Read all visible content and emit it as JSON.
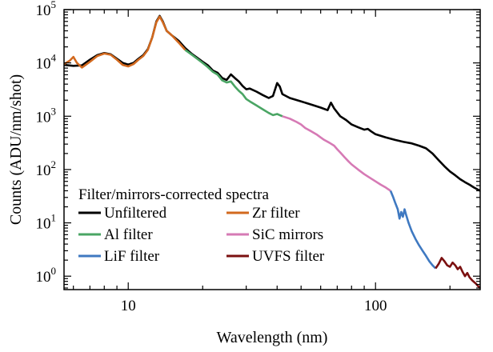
{
  "chart_data": {
    "type": "line",
    "xlabel": "Wavelength (nm)",
    "ylabel": "Counts (ADU/nm/shot)",
    "xscale": "log",
    "yscale": "log",
    "xlim": [
      5.5,
      265
    ],
    "ylim": [
      0.56,
      100000
    ],
    "x_ticks": [
      {
        "value": 10,
        "label": "10"
      },
      {
        "value": 100,
        "label": "100"
      }
    ],
    "y_ticks": [
      {
        "exp": 0,
        "base": "10",
        "sup": "0"
      },
      {
        "exp": 1,
        "base": "10",
        "sup": "1"
      },
      {
        "exp": 2,
        "base": "10",
        "sup": "2"
      },
      {
        "exp": 3,
        "base": "10",
        "sup": "3"
      },
      {
        "exp": 4,
        "base": "10",
        "sup": "4"
      },
      {
        "exp": 5,
        "base": "10",
        "sup": "5"
      }
    ],
    "legend": {
      "title": "Filter/mirrors-corrected spectra",
      "placement": "bottom-left"
    },
    "series": [
      {
        "name": "Unfiltered",
        "color": "#000000",
        "points": [
          [
            5.5,
            9200
          ],
          [
            6,
            8800
          ],
          [
            6.5,
            9000
          ],
          [
            7,
            11500
          ],
          [
            7.5,
            14000
          ],
          [
            8,
            15300
          ],
          [
            8.5,
            14500
          ],
          [
            9,
            12000
          ],
          [
            9.5,
            10000
          ],
          [
            10,
            9300
          ],
          [
            10.5,
            10000
          ],
          [
            11,
            12000
          ],
          [
            11.5,
            14000
          ],
          [
            12,
            18000
          ],
          [
            12.5,
            30000
          ],
          [
            13,
            60000
          ],
          [
            13.4,
            76000
          ],
          [
            13.8,
            60000
          ],
          [
            14.3,
            40000
          ],
          [
            15,
            33000
          ],
          [
            16,
            26000
          ],
          [
            17,
            19000
          ],
          [
            18,
            15000
          ],
          [
            19,
            12500
          ],
          [
            20,
            10500
          ],
          [
            21,
            9000
          ],
          [
            22,
            7200
          ],
          [
            23,
            6500
          ],
          [
            24,
            5200
          ],
          [
            25,
            4800
          ],
          [
            26,
            6100
          ],
          [
            27,
            5200
          ],
          [
            28,
            4500
          ],
          [
            29,
            3700
          ],
          [
            30,
            3200
          ],
          [
            31,
            3300
          ],
          [
            33,
            2900
          ],
          [
            35,
            2500
          ],
          [
            37,
            2200
          ],
          [
            38.5,
            2400
          ],
          [
            40,
            4200
          ],
          [
            41,
            3600
          ],
          [
            42,
            2600
          ],
          [
            45,
            2200
          ],
          [
            50,
            1900
          ],
          [
            55,
            1650
          ],
          [
            60,
            1450
          ],
          [
            64,
            1300
          ],
          [
            66,
            1800
          ],
          [
            68,
            1400
          ],
          [
            72,
            1000
          ],
          [
            76,
            850
          ],
          [
            80,
            700
          ],
          [
            85,
            620
          ],
          [
            90,
            560
          ],
          [
            93,
            580
          ],
          [
            96,
            520
          ],
          [
            100,
            460
          ],
          [
            110,
            400
          ],
          [
            120,
            360
          ],
          [
            130,
            330
          ],
          [
            140,
            310
          ],
          [
            150,
            280
          ],
          [
            160,
            250
          ],
          [
            170,
            200
          ],
          [
            180,
            150
          ],
          [
            190,
            115
          ],
          [
            200,
            92
          ],
          [
            210,
            78
          ],
          [
            220,
            66
          ],
          [
            230,
            58
          ],
          [
            240,
            52
          ],
          [
            250,
            46
          ],
          [
            265,
            40
          ]
        ]
      },
      {
        "name": "Zr filter",
        "color": "#d2691e",
        "points": [
          [
            5.5,
            9500
          ],
          [
            5.8,
            11000
          ],
          [
            6,
            13000
          ],
          [
            6.2,
            10000
          ],
          [
            6.5,
            8200
          ],
          [
            7,
            10500
          ],
          [
            7.5,
            13500
          ],
          [
            8,
            15000
          ],
          [
            8.5,
            14200
          ],
          [
            9,
            11500
          ],
          [
            9.5,
            9200
          ],
          [
            10,
            8600
          ],
          [
            10.5,
            9500
          ],
          [
            11,
            11500
          ],
          [
            11.5,
            13500
          ],
          [
            12,
            17500
          ],
          [
            12.5,
            30000
          ],
          [
            13,
            58000
          ],
          [
            13.4,
            74000
          ],
          [
            13.8,
            58000
          ],
          [
            14.3,
            40000
          ],
          [
            15,
            33000
          ],
          [
            16,
            24000
          ],
          [
            17,
            17500
          ]
        ]
      },
      {
        "name": "Al filter",
        "color": "#4aa564",
        "points": [
          [
            17,
            17500
          ],
          [
            18,
            14500
          ],
          [
            19,
            12000
          ],
          [
            20,
            10000
          ],
          [
            21,
            8300
          ],
          [
            22,
            6800
          ],
          [
            23,
            6000
          ],
          [
            24,
            4700
          ],
          [
            25,
            4300
          ],
          [
            26,
            4500
          ],
          [
            27,
            3600
          ],
          [
            28,
            3000
          ],
          [
            29,
            2600
          ],
          [
            30,
            2100
          ],
          [
            31,
            1900
          ],
          [
            33,
            1600
          ],
          [
            35,
            1350
          ],
          [
            37,
            1150
          ],
          [
            38.5,
            1050
          ],
          [
            40,
            1100
          ],
          [
            41,
            1050
          ],
          [
            42,
            1000
          ]
        ]
      },
      {
        "name": "SiC mirrors",
        "color": "#d67ab5",
        "points": [
          [
            42,
            1000
          ],
          [
            45,
            900
          ],
          [
            48,
            780
          ],
          [
            50,
            700
          ],
          [
            52,
            600
          ],
          [
            55,
            520
          ],
          [
            58,
            450
          ],
          [
            60,
            400
          ],
          [
            62,
            360
          ],
          [
            65,
            320
          ],
          [
            68,
            280
          ],
          [
            70,
            240
          ],
          [
            72,
            210
          ],
          [
            75,
            170
          ],
          [
            78,
            140
          ],
          [
            80,
            125
          ],
          [
            85,
            100
          ],
          [
            90,
            82
          ],
          [
            95,
            70
          ],
          [
            100,
            60
          ],
          [
            105,
            52
          ],
          [
            110,
            46
          ],
          [
            115,
            40
          ]
        ]
      },
      {
        "name": "LiF filter",
        "color": "#3f79c1",
        "points": [
          [
            115,
            40
          ],
          [
            118,
            30
          ],
          [
            120,
            24
          ],
          [
            123,
            18
          ],
          [
            125,
            12
          ],
          [
            127,
            16
          ],
          [
            129,
            13
          ],
          [
            131,
            18
          ],
          [
            133,
            14
          ],
          [
            136,
            10
          ],
          [
            140,
            7
          ],
          [
            145,
            5
          ],
          [
            150,
            3.8
          ],
          [
            155,
            3
          ],
          [
            160,
            2.4
          ],
          [
            165,
            1.9
          ],
          [
            170,
            1.6
          ],
          [
            175,
            1.4
          ]
        ]
      },
      {
        "name": "UVFS filter",
        "color": "#7b1010",
        "points": [
          [
            175,
            1.4
          ],
          [
            180,
            1.7
          ],
          [
            185,
            2.2
          ],
          [
            190,
            1.9
          ],
          [
            195,
            1.6
          ],
          [
            200,
            1.5
          ],
          [
            205,
            1.8
          ],
          [
            210,
            1.6
          ],
          [
            215,
            1.35
          ],
          [
            220,
            1.5
          ],
          [
            225,
            1.2
          ],
          [
            230,
            1.0
          ],
          [
            235,
            1.15
          ],
          [
            240,
            0.95
          ],
          [
            245,
            0.85
          ],
          [
            250,
            0.78
          ],
          [
            255,
            0.72
          ],
          [
            260,
            0.65
          ],
          [
            265,
            0.6
          ]
        ]
      }
    ]
  }
}
